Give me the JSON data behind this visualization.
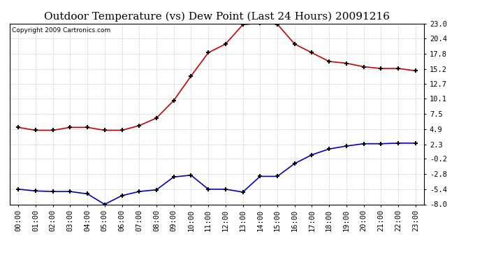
{
  "title": "Outdoor Temperature (vs) Dew Point (Last 24 Hours) 20091216",
  "copyright_text": "Copyright 2009 Cartronics.com",
  "x_labels": [
    "00:00",
    "01:00",
    "02:00",
    "03:00",
    "04:00",
    "05:00",
    "06:00",
    "07:00",
    "08:00",
    "09:00",
    "10:00",
    "11:00",
    "12:00",
    "13:00",
    "14:00",
    "15:00",
    "16:00",
    "17:00",
    "18:00",
    "19:00",
    "20:00",
    "21:00",
    "22:00",
    "23:00"
  ],
  "y_ticks": [
    23.0,
    20.4,
    17.8,
    15.2,
    12.7,
    10.1,
    7.5,
    4.9,
    2.3,
    -0.2,
    -2.8,
    -5.4,
    -8.0
  ],
  "y_min": -8.0,
  "y_max": 23.0,
  "temp_data": [
    5.2,
    4.7,
    4.7,
    5.2,
    5.2,
    4.7,
    4.7,
    5.5,
    6.8,
    9.8,
    14.0,
    18.0,
    19.5,
    22.8,
    23.1,
    22.9,
    19.5,
    18.0,
    16.5,
    16.2,
    15.6,
    15.3,
    15.3,
    14.9
  ],
  "dew_data": [
    -5.4,
    -5.7,
    -5.8,
    -5.8,
    -6.2,
    -8.0,
    -6.5,
    -5.8,
    -5.5,
    -3.3,
    -3.0,
    -5.4,
    -5.4,
    -5.9,
    -3.2,
    -3.2,
    -1.0,
    0.5,
    1.5,
    2.0,
    2.4,
    2.4,
    2.5,
    2.5
  ],
  "temp_color": "#cc0000",
  "dew_color": "#0000cc",
  "bg_color": "#ffffff",
  "plot_bg_color": "#ffffff",
  "grid_color": "#cccccc",
  "title_fontsize": 11,
  "copyright_fontsize": 6.5,
  "tick_fontsize": 7.5
}
